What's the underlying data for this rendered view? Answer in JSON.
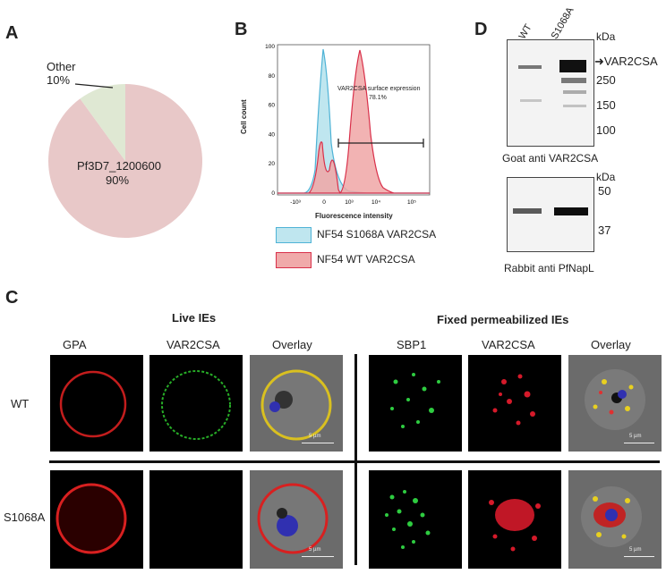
{
  "panels": {
    "a": "A",
    "b": "B",
    "c": "C",
    "d": "D"
  },
  "panel_a": {
    "chart_data": {
      "type": "pie",
      "slices": [
        {
          "label": "Pf3D7_1200600",
          "value": 90,
          "pct_label": "90%",
          "color": "#e8c8c8"
        },
        {
          "label": "Other",
          "value": 10,
          "pct_label": "10%",
          "color": "#dfe8d3"
        }
      ]
    }
  },
  "panel_b": {
    "chart_data": {
      "type": "area",
      "xlabel": "Fluorescence intensity",
      "ylabel": "Cell count",
      "xscale": "log",
      "x_ticks": [
        "-10³",
        "0",
        "10³",
        "10⁴",
        "10⁵"
      ],
      "y_ticks": [
        0,
        20,
        40,
        60,
        80,
        100
      ],
      "ylim": [
        0,
        100
      ],
      "annotation": {
        "line1": "VAR2CSA surface expression",
        "line2": "78.1%"
      },
      "series": [
        {
          "name": "NF54 S1068A VAR2CSA",
          "color": "#5bc0de",
          "fill": "#bfe6ef"
        },
        {
          "name": "NF54 WT VAR2CSA",
          "color": "#d9304a",
          "fill": "#f0aaaa"
        }
      ]
    }
  },
  "panel_c": {
    "group_live": "Live IEs",
    "group_fixed": "Fixed  permeabilized IEs",
    "columns": [
      "GPA",
      "VAR2CSA",
      "Overlay",
      "SBP1",
      "VAR2CSA",
      "Overlay"
    ],
    "rows": [
      "WT",
      "S1068A"
    ],
    "scale_label": "5 µm"
  },
  "panel_d": {
    "lanes": [
      "WT",
      "S1068A"
    ],
    "kda_label": "kDa",
    "top_markers": [
      "250",
      "150",
      "100"
    ],
    "top_band_label": "VAR2CSA",
    "top_caption": "Goat anti VAR2CSA",
    "bottom_markers": [
      "50",
      "37"
    ],
    "bottom_caption": "Rabbit anti PfNapL"
  }
}
